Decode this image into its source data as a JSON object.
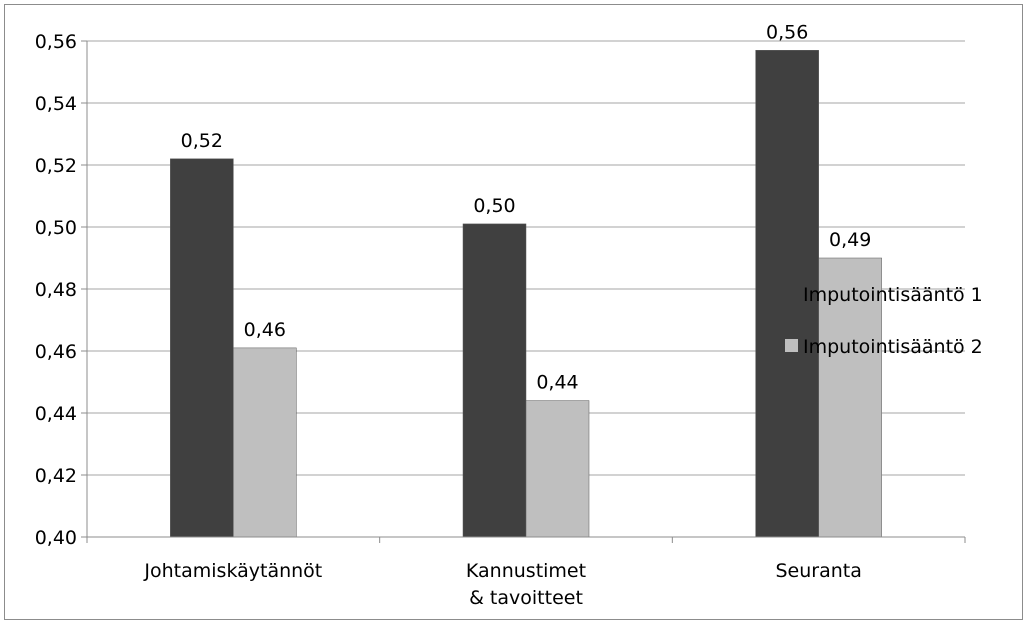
{
  "chart_data": {
    "type": "bar",
    "categories": [
      [
        "Johtamiskäytännöt"
      ],
      [
        "Kannustimet",
        "& tavoitteet"
      ],
      [
        "Seuranta"
      ]
    ],
    "series": [
      {
        "name": "Imputointisääntö 1",
        "color": "#404040",
        "values": [
          0.522,
          0.501,
          0.557
        ],
        "labels": [
          "0,52",
          "0,50",
          "0,56"
        ]
      },
      {
        "name": "Imputointisääntö 2",
        "color": "#bfbfbf",
        "values": [
          0.461,
          0.444,
          0.49
        ],
        "labels": [
          "0,46",
          "0,44",
          "0,49"
        ]
      }
    ],
    "ylim": [
      0.4,
      0.56
    ],
    "yticks": [
      0.4,
      0.42,
      0.44,
      0.46,
      0.48,
      0.5,
      0.52,
      0.54,
      0.56
    ],
    "ytick_labels": [
      "0,40",
      "0,42",
      "0,44",
      "0,46",
      "0,48",
      "0,50",
      "0,52",
      "0,54",
      "0,56"
    ],
    "grid": true,
    "legend_position": "right",
    "gridline_color": "#a6a6a6"
  }
}
